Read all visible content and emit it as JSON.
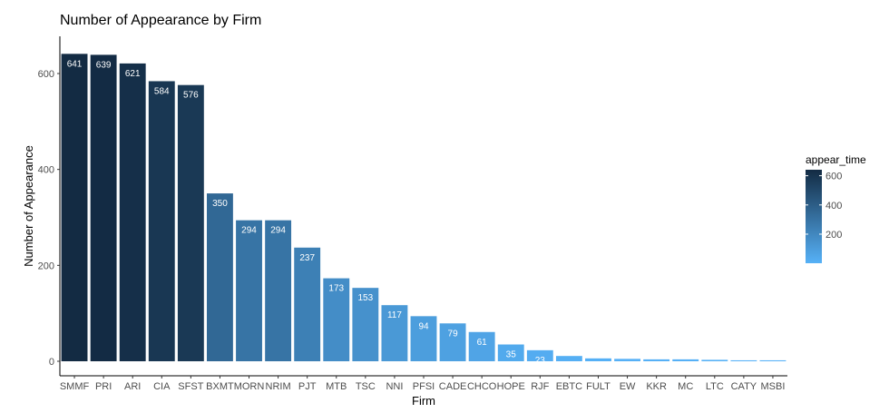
{
  "chart_data": {
    "type": "bar",
    "title": "Number of Appearance by Firm",
    "xlabel": "Firm",
    "ylabel": "Number of Appearance",
    "ylim": [
      0,
      660
    ],
    "yticks": [
      0,
      200,
      400,
      600
    ],
    "grid": false,
    "categories": [
      "SMMF",
      "PRI",
      "ARI",
      "CIA",
      "SFST",
      "BXMT",
      "MORN",
      "NRIM",
      "PJT",
      "MTB",
      "TSC",
      "NNI",
      "PFSI",
      "CADE",
      "CHCO",
      "HOPE",
      "RJF",
      "EBTC",
      "FULT",
      "EW",
      "KKR",
      "MC",
      "LTC",
      "CATY",
      "MSBI"
    ],
    "values": [
      641,
      639,
      621,
      584,
      576,
      350,
      294,
      294,
      237,
      173,
      153,
      117,
      94,
      79,
      61,
      35,
      23,
      11,
      6,
      5,
      4,
      4,
      3,
      2,
      2
    ],
    "data_labels": [
      "641",
      "639",
      "621",
      "584",
      "576",
      "350",
      "294",
      "294",
      "237",
      "173",
      "153",
      "117",
      "94",
      "79",
      "61",
      "35",
      "23",
      "",
      "",
      "",
      "",
      "",
      "",
      "",
      ""
    ],
    "legend": {
      "title": "appear_time",
      "placement": "right",
      "ticks": [
        200,
        400,
        600
      ],
      "range": [
        1,
        641
      ],
      "color_low": "#56B1F7",
      "color_high": "#132B43"
    }
  }
}
